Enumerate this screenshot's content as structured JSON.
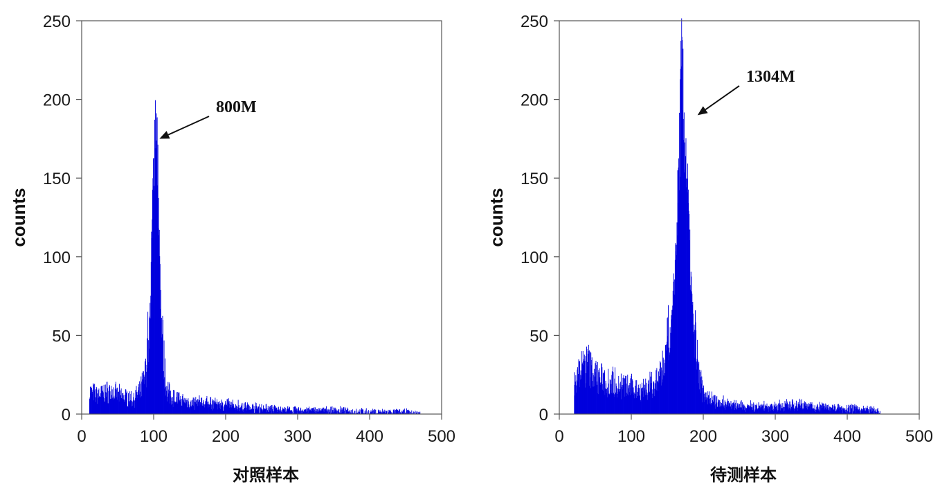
{
  "chart_data": [
    {
      "type": "histogram",
      "xlabel": "对照样本",
      "ylabel": "counts",
      "xlim": [
        0,
        500
      ],
      "ylim": [
        0,
        250
      ],
      "xticks": [
        0,
        100,
        200,
        300,
        400,
        500
      ],
      "yticks": [
        0,
        50,
        100,
        150,
        200,
        250
      ],
      "bar_color": "#0000dd",
      "annotation": {
        "text": "800M",
        "points_to": [
          108,
          175
        ]
      },
      "series": [
        {
          "profile": [
            [
              10,
              12
            ],
            [
              20,
              10
            ],
            [
              30,
              11
            ],
            [
              40,
              12
            ],
            [
              50,
              10
            ],
            [
              60,
              9
            ],
            [
              70,
              8
            ],
            [
              80,
              11
            ],
            [
              88,
              20
            ],
            [
              92,
              40
            ],
            [
              95,
              70
            ],
            [
              97,
              110
            ],
            [
              99,
              150
            ],
            [
              101,
              180
            ],
            [
              102,
              194
            ],
            [
              104,
              180
            ],
            [
              106,
              140
            ],
            [
              108,
              95
            ],
            [
              110,
              60
            ],
            [
              113,
              30
            ],
            [
              117,
              15
            ],
            [
              122,
              10
            ],
            [
              130,
              8
            ],
            [
              150,
              6
            ],
            [
              175,
              6
            ],
            [
              200,
              5
            ],
            [
              225,
              4
            ],
            [
              250,
              3
            ],
            [
              300,
              2
            ],
            [
              350,
              2
            ],
            [
              400,
              1
            ],
            [
              450,
              1
            ],
            [
              470,
              0
            ]
          ]
        }
      ]
    },
    {
      "type": "histogram",
      "xlabel": "待测样本",
      "ylabel": "counts",
      "xlim": [
        0,
        500
      ],
      "ylim": [
        0,
        250
      ],
      "xticks": [
        0,
        100,
        200,
        300,
        400,
        500
      ],
      "yticks": [
        0,
        50,
        100,
        150,
        200,
        250
      ],
      "bar_color": "#0000dd",
      "annotation": {
        "text": "1304M",
        "points_to": [
          192,
          190
        ]
      },
      "series": [
        {
          "profile": [
            [
              20,
              15
            ],
            [
              25,
              20
            ],
            [
              30,
              24
            ],
            [
              40,
              26
            ],
            [
              50,
              20
            ],
            [
              60,
              18
            ],
            [
              70,
              17
            ],
            [
              80,
              16
            ],
            [
              90,
              14
            ],
            [
              100,
              14
            ],
            [
              110,
              13
            ],
            [
              120,
              14
            ],
            [
              130,
              15
            ],
            [
              140,
              20
            ],
            [
              148,
              30
            ],
            [
              153,
              45
            ],
            [
              157,
              65
            ],
            [
              160,
              90
            ],
            [
              163,
              120
            ],
            [
              166,
              160
            ],
            [
              168,
              200
            ],
            [
              170,
              223
            ],
            [
              172,
              190
            ],
            [
              175,
              170
            ],
            [
              178,
              140
            ],
            [
              181,
              100
            ],
            [
              184,
              70
            ],
            [
              187,
              50
            ],
            [
              190,
              30
            ],
            [
              195,
              18
            ],
            [
              200,
              12
            ],
            [
              210,
              8
            ],
            [
              225,
              6
            ],
            [
              250,
              4
            ],
            [
              300,
              4
            ],
            [
              330,
              5
            ],
            [
              360,
              4
            ],
            [
              400,
              3
            ],
            [
              440,
              2
            ],
            [
              446,
              0
            ]
          ]
        }
      ]
    }
  ]
}
